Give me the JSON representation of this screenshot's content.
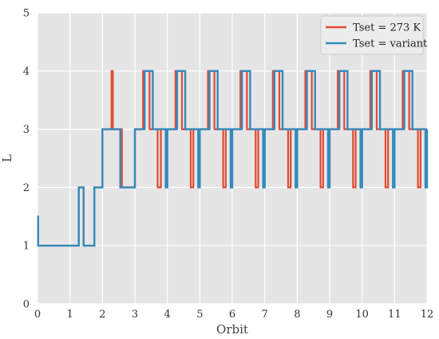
{
  "chart_data": {
    "type": "line",
    "title": "",
    "xlabel": "Orbit",
    "ylabel": "L",
    "xlim": [
      0,
      12
    ],
    "ylim": [
      0,
      5
    ],
    "xticks": [
      "0",
      "1",
      "2",
      "3",
      "4",
      "5",
      "6",
      "7",
      "8",
      "9",
      "10",
      "11",
      "12"
    ],
    "yticks": [
      "0",
      "1",
      "2",
      "3",
      "4",
      "5"
    ],
    "grid": true,
    "legend_position": "top-right",
    "step_interpolation": "post",
    "series": [
      {
        "name": "Tset = 273 K",
        "color": "#e24a33",
        "x": [
          0,
          0.02,
          1.27,
          1.42,
          1.75,
          2.0,
          2.28,
          2.3,
          2.32,
          2.6,
          3.0,
          3.25,
          3.45,
          3.7,
          3.8,
          4.0,
          4.25,
          4.45,
          4.72,
          4.8,
          5.0,
          5.25,
          5.45,
          5.72,
          5.8,
          6.0,
          6.25,
          6.45,
          6.72,
          6.8,
          7.0,
          7.25,
          7.45,
          7.72,
          7.8,
          8.0,
          8.25,
          8.45,
          8.72,
          8.8,
          9.0,
          9.25,
          9.45,
          9.72,
          9.8,
          10.0,
          10.25,
          10.45,
          10.72,
          10.8,
          11.0,
          11.25,
          11.45,
          11.72,
          11.8,
          12.0
        ],
        "y": [
          1.5,
          1,
          2,
          1,
          2,
          3,
          4,
          4,
          3,
          2,
          3,
          4,
          3,
          2,
          3,
          3,
          4,
          3,
          2,
          3,
          3,
          4,
          3,
          2,
          3,
          3,
          4,
          3,
          2,
          3,
          3,
          4,
          3,
          2,
          3,
          3,
          4,
          3,
          2,
          3,
          3,
          4,
          3,
          2,
          3,
          3,
          4,
          3,
          2,
          3,
          3,
          4,
          3,
          2,
          3,
          3
        ]
      },
      {
        "name": "Tset = variant",
        "color": "#348abd",
        "x": [
          0,
          0.02,
          1.27,
          1.42,
          1.75,
          2.0,
          2.55,
          3.0,
          3.3,
          3.4,
          3.55,
          3.95,
          4.0,
          4.3,
          4.4,
          4.55,
          4.95,
          5.0,
          5.3,
          5.4,
          5.55,
          5.95,
          6.0,
          6.3,
          6.4,
          6.55,
          6.95,
          7.0,
          7.3,
          7.4,
          7.55,
          7.95,
          8.0,
          8.3,
          8.4,
          8.55,
          8.95,
          9.0,
          9.3,
          9.4,
          9.55,
          9.95,
          10.0,
          10.3,
          10.4,
          10.55,
          10.95,
          11.0,
          11.3,
          11.4,
          11.55,
          11.95,
          12.0
        ],
        "y": [
          1.5,
          1,
          2,
          1,
          2,
          3,
          2,
          3,
          4,
          4,
          3,
          2,
          3,
          4,
          4,
          3,
          2,
          3,
          4,
          4,
          3,
          2,
          3,
          4,
          4,
          3,
          2,
          3,
          4,
          4,
          3,
          2,
          3,
          4,
          4,
          3,
          2,
          3,
          4,
          4,
          3,
          2,
          3,
          4,
          4,
          3,
          2,
          3,
          4,
          4,
          3,
          2,
          3
        ]
      }
    ]
  }
}
